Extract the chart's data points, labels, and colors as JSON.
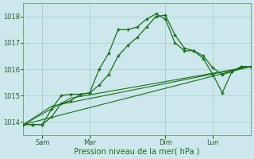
{
  "bg_color": "#cce8ec",
  "grid_color": "#aacccc",
  "line_color": "#1a6e1a",
  "xlabel": "Pression niveau de la mer( hPa )",
  "ylim": [
    1013.5,
    1018.5
  ],
  "yticks": [
    1014,
    1015,
    1016,
    1017,
    1018
  ],
  "xtick_labels": [
    "Sam",
    "Mar",
    "Dim",
    "Lun"
  ],
  "xtick_positions": [
    8,
    28,
    60,
    80
  ],
  "xlim": [
    0,
    96
  ],
  "s1y_x": [
    0,
    4,
    8,
    12,
    16,
    20,
    24,
    28,
    32,
    36,
    40,
    44,
    48,
    52,
    56,
    60,
    64,
    68,
    72,
    76,
    80,
    84,
    88,
    92,
    96
  ],
  "s1y": [
    1013.9,
    1013.9,
    1013.9,
    1014.2,
    1014.7,
    1014.8,
    1015.05,
    1015.1,
    1015.4,
    1015.8,
    1016.5,
    1016.9,
    1017.2,
    1017.6,
    1018.0,
    1018.05,
    1017.3,
    1016.8,
    1016.7,
    1016.5,
    1016.05,
    1015.8,
    1015.9,
    1016.1,
    1016.1
  ],
  "s2y_x": [
    0,
    4,
    8,
    12,
    16,
    20,
    24,
    28,
    32,
    36,
    40,
    44,
    48,
    52,
    56,
    60,
    64,
    68,
    72,
    76,
    80,
    84,
    88,
    92,
    96
  ],
  "s2y": [
    1013.9,
    1013.9,
    1013.9,
    1014.5,
    1015.0,
    1015.05,
    1015.05,
    1015.1,
    1016.0,
    1016.6,
    1017.5,
    1017.5,
    1017.6,
    1017.9,
    1018.1,
    1017.9,
    1017.0,
    1016.7,
    1016.7,
    1016.4,
    1015.8,
    1015.1,
    1015.9,
    1016.1,
    1016.1
  ],
  "trend1_x": [
    0,
    96
  ],
  "trend1_y": [
    1013.9,
    1016.1
  ],
  "trend2_x": [
    0,
    20,
    96
  ],
  "trend2_y": [
    1013.9,
    1014.9,
    1016.1
  ],
  "trend3_x": [
    0,
    12,
    96
  ],
  "trend3_y": [
    1013.9,
    1014.6,
    1016.1
  ],
  "vline_positions": [
    8,
    28,
    60,
    80
  ],
  "tick_color": "#2d5a2d",
  "xlabel_fontsize": 7,
  "tick_fontsize": 6
}
